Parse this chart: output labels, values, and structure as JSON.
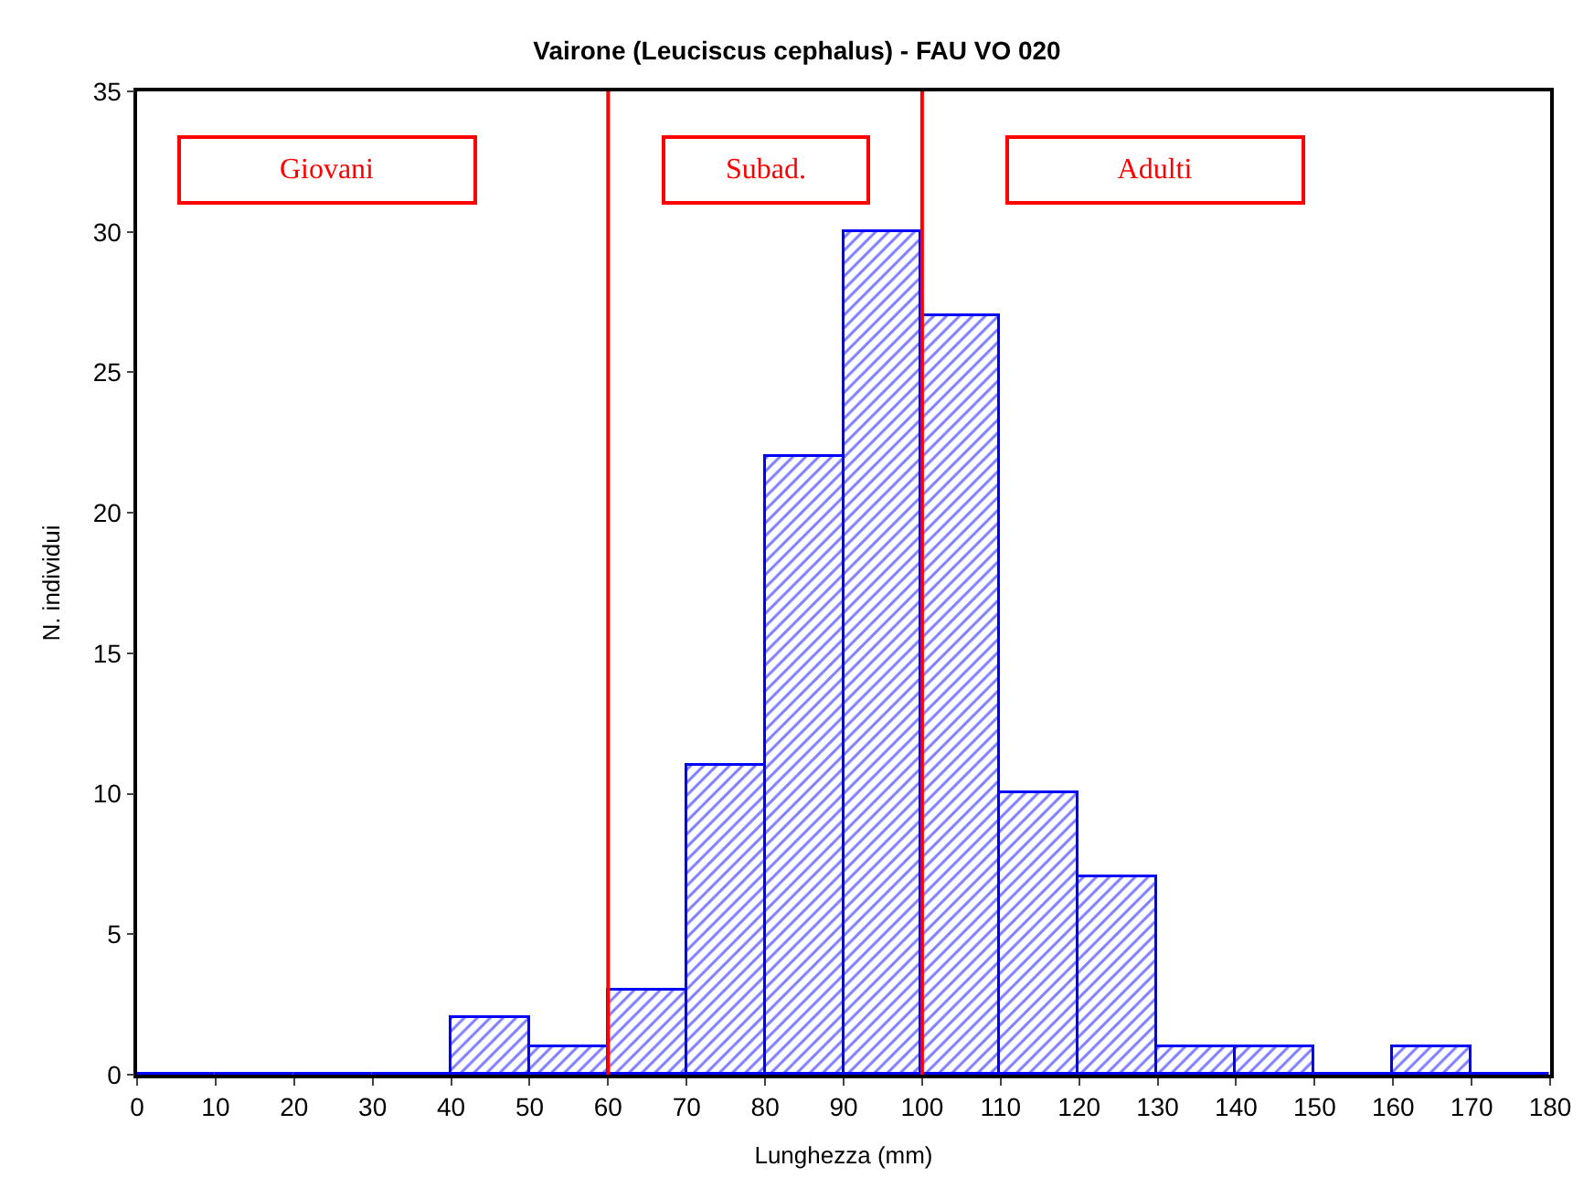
{
  "chart_data": {
    "type": "histogram",
    "title": "Vairone (Leuciscus cephalus) - FAU VO 020",
    "xlabel": "Lunghezza (mm)",
    "ylabel": "N. individui",
    "bins": [
      0,
      10,
      20,
      30,
      40,
      50,
      60,
      70,
      80,
      90,
      100,
      110,
      120,
      130,
      140,
      150,
      160,
      170,
      180
    ],
    "values": [
      0,
      0,
      0,
      0,
      2,
      1,
      3,
      11,
      22,
      30,
      27,
      10,
      7,
      1,
      1,
      0,
      1,
      0
    ],
    "color": "#0000ff",
    "xlim": [
      0,
      180
    ],
    "xticks": [
      0,
      10,
      20,
      30,
      40,
      50,
      60,
      70,
      80,
      90,
      100,
      110,
      120,
      130,
      140,
      150,
      160,
      170,
      180
    ],
    "ylim": [
      0,
      35
    ],
    "yticks": [
      0,
      5,
      10,
      15,
      20,
      25,
      30,
      35
    ],
    "ref_lines": [
      {
        "axis": "x",
        "value": 60,
        "color": "#ff0000"
      },
      {
        "axis": "x",
        "value": 100,
        "color": "#ff0000"
      }
    ],
    "annotations": [
      "Giovani",
      "Subad.",
      "Adulti"
    ]
  }
}
